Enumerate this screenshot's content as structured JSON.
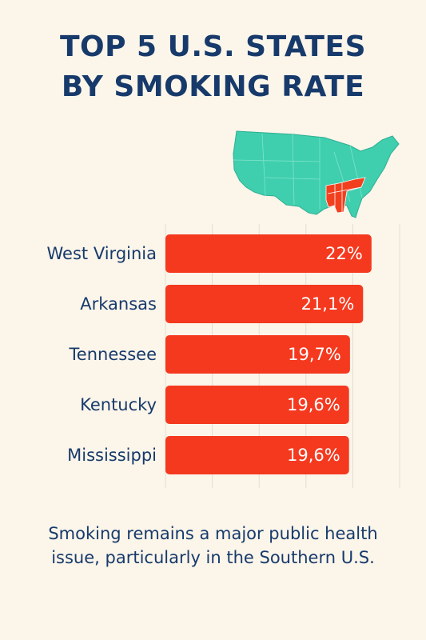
{
  "title_lines": [
    "TOP 5 U.S. STATES",
    "BY SMOKING RATE"
  ],
  "map": {
    "icon": "us-map-icon",
    "base_color": "#3fcfae",
    "highlight_color": "#f2401f"
  },
  "chart_data": {
    "type": "bar",
    "orientation": "horizontal",
    "categories": [
      "West Virginia",
      "Arkansas",
      "Tennessee",
      "Kentucky",
      "Mississippi"
    ],
    "values": [
      22,
      21.1,
      19.7,
      19.6,
      19.6
    ],
    "value_labels": [
      "22%",
      "21,1%",
      "19,7%",
      "19,6%",
      "19,6%"
    ],
    "unit": "%",
    "xlim": [
      0,
      25
    ],
    "grid": true,
    "bar_color": "#f4391f",
    "label_color": "#173a6b",
    "value_text_color": "#ffffff"
  },
  "footnote": "Smoking remains a major public health issue, particularly in the Southern U.S."
}
